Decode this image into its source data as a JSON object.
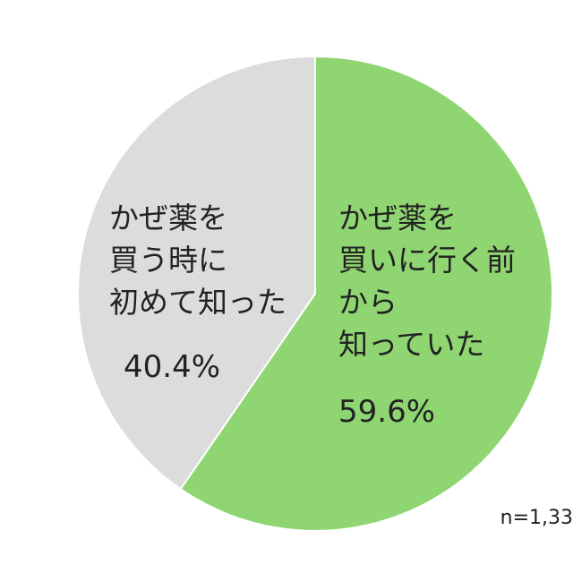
{
  "chart_data": {
    "type": "pie",
    "categories": [
      "かぜ薬を\n買いに行く前\nから\n知っていた",
      "かぜ薬を\n買う時に\n初めて知った"
    ],
    "values": [
      59.6,
      40.4
    ],
    "value_labels": [
      "59.6%",
      "40.4%"
    ],
    "colors": [
      "#8fd672",
      "#dcdcdc"
    ],
    "note": "n=1,33"
  }
}
